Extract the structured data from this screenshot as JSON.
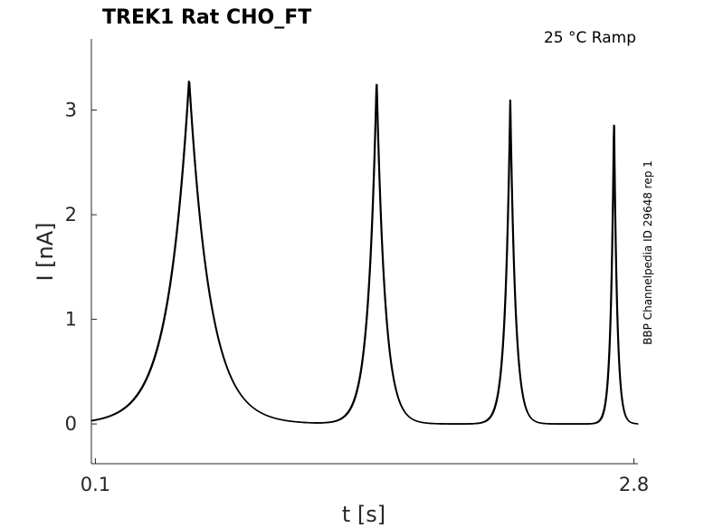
{
  "chart_data": {
    "type": "line",
    "title": "TREK1  Rat  CHO_FT",
    "condition": "25 °C  Ramp",
    "side_label": "BBP Channelpedia ID 29648 rep 1",
    "xlabel": "t [s]",
    "ylabel": "I [nA]",
    "xlim": [
      0.08,
      2.82
    ],
    "ylim": [
      -0.38,
      3.68
    ],
    "x_ticks": [
      {
        "value": 0.1,
        "label": "0.1"
      },
      {
        "value": 2.8,
        "label": "2.8"
      }
    ],
    "y_ticks": [
      {
        "value": 0,
        "label": "0"
      },
      {
        "value": 1,
        "label": "1"
      },
      {
        "value": 2,
        "label": "2"
      },
      {
        "value": 3,
        "label": "3"
      }
    ],
    "grid": false,
    "legend": "none",
    "line_color": "#000000",
    "baseline": 0.0,
    "series": [
      {
        "peaks": [
          {
            "t": 0.57,
            "peak": 3.3
          },
          {
            "t": 1.51,
            "peak": 3.3
          },
          {
            "t": 2.18,
            "peak": 3.1
          },
          {
            "t": 2.7,
            "peak": 2.97
          }
        ]
      }
    ]
  }
}
